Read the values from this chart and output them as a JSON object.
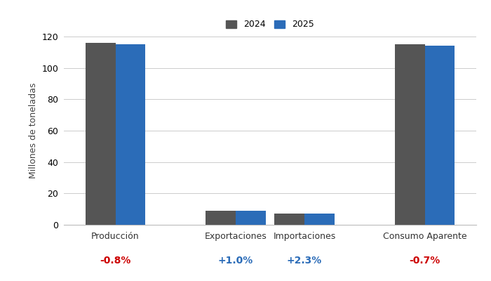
{
  "categories": [
    "Producción",
    "Exportaciones",
    "Importaciones",
    "Consumo Aparente"
  ],
  "values_2024": [
    116.0,
    9.0,
    7.0,
    115.0
  ],
  "values_2025": [
    115.07,
    9.09,
    7.16,
    114.2
  ],
  "color_2024": "#555555",
  "color_2025": "#2b6cb8",
  "ylabel": "Millones de toneladas",
  "ylim": [
    0,
    120
  ],
  "yticks": [
    0,
    20,
    40,
    60,
    80,
    100,
    120
  ],
  "legend_labels": [
    "2024",
    "2025"
  ],
  "pct_labels": [
    "-0.8%",
    "+1.0%",
    "+2.3%",
    "-0.7%"
  ],
  "pct_colors": [
    "#cc0000",
    "#2b6cb8",
    "#2b6cb8",
    "#cc0000"
  ],
  "background_color": "#ffffff",
  "grid_color": "#cccccc",
  "bar_width": 0.35
}
